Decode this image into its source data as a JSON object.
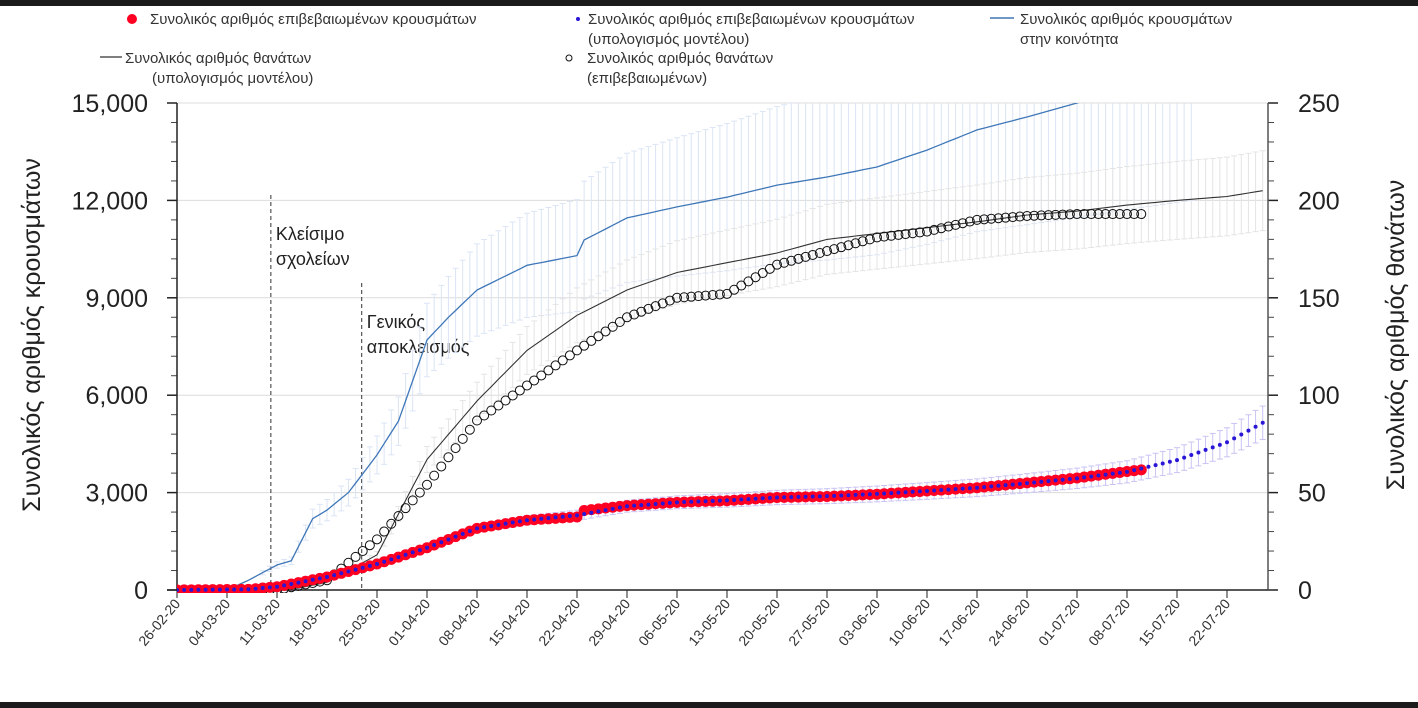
{
  "chart_data": {
    "type": "scatter",
    "title": "",
    "xlabel": "",
    "ylabel_left": "Συνολικός αριθμός κρουσμάτων",
    "ylabel_right": "Συνολικός αριθμός θανάτων",
    "ylim_left": [
      0,
      15000
    ],
    "ylim_right": [
      0,
      250
    ],
    "yticks_left": [
      "0",
      "3,000",
      "6,000",
      "9,000",
      "12,000",
      "15,000"
    ],
    "yticks_right": [
      "0",
      "50",
      "100",
      "150",
      "200",
      "250"
    ],
    "x_unit": "days since 26-02-20",
    "xticks": [
      "26-02-20",
      "04-03-20",
      "11-03-20",
      "18-03-20",
      "25-03-20",
      "01-04-20",
      "08-04-20",
      "15-04-20",
      "22-04-20",
      "29-04-20",
      "06-05-20",
      "13-05-20",
      "20-05-20",
      "27-05-20",
      "03-06-20",
      "10-06-20",
      "17-06-20",
      "24-06-20",
      "01-07-20",
      "08-07-20",
      "15-07-20",
      "22-07-20"
    ],
    "grid": "horizontal",
    "legend_placement": "top",
    "legend": [
      {
        "label": "Συνολικός αριθμός επιβεβαιωμένων κρουσμάτων",
        "color": "#ff0022",
        "marker": "filled-circle"
      },
      {
        "label": "Συνολικός αριθμός επιβεβαιωμένων κρουσμάτων",
        "label2": "(υπολογισμός μοντέλου)",
        "color": "#2a16d6",
        "marker": "dot"
      },
      {
        "label": "Συνολικός αριθμός κρουσμάτων",
        "label2": "στην κοινότητα",
        "color": "#3f77b8",
        "marker": "line"
      },
      {
        "label": "Συνολικός αριθμός θανάτων",
        "label2": "(υπολογισμός μοντέλου)",
        "color": "#333333",
        "marker": "line"
      },
      {
        "label": "Συνολικός αριθμός θανάτων",
        "label2": "(επιβεβαιωμένων)",
        "color": "#111111",
        "marker": "open-circle"
      }
    ],
    "annotations": [
      {
        "day": 13,
        "label1": "Κλείσιμο",
        "label2": "σχολείων"
      },
      {
        "day": 26,
        "label1": "Γενικός",
        "label2": "αποκλεισμός"
      }
    ],
    "series": [
      {
        "name": "confirmed_cases",
        "axis": "left",
        "start": 0,
        "end": 135,
        "knots": [
          [
            0,
            0
          ],
          [
            10,
            20
          ],
          [
            14,
            100
          ],
          [
            21,
            400
          ],
          [
            28,
            800
          ],
          [
            35,
            1300
          ],
          [
            42,
            1900
          ],
          [
            49,
            2150
          ],
          [
            56,
            2250
          ],
          [
            57,
            2450
          ],
          [
            63,
            2600
          ],
          [
            70,
            2700
          ],
          [
            77,
            2750
          ],
          [
            84,
            2850
          ],
          [
            91,
            2880
          ],
          [
            98,
            2950
          ],
          [
            105,
            3050
          ],
          [
            112,
            3150
          ],
          [
            119,
            3300
          ],
          [
            126,
            3450
          ],
          [
            133,
            3650
          ],
          [
            135,
            3700
          ]
        ]
      },
      {
        "name": "confirmed_cases_model",
        "axis": "left",
        "start": 0,
        "end": 152,
        "error_frac": [
          0.05,
          0.1
        ],
        "knots": [
          [
            0,
            0
          ],
          [
            10,
            20
          ],
          [
            14,
            100
          ],
          [
            21,
            400
          ],
          [
            28,
            800
          ],
          [
            35,
            1300
          ],
          [
            42,
            1900
          ],
          [
            49,
            2150
          ],
          [
            56,
            2300
          ],
          [
            63,
            2580
          ],
          [
            70,
            2700
          ],
          [
            77,
            2760
          ],
          [
            84,
            2850
          ],
          [
            91,
            2890
          ],
          [
            98,
            2960
          ],
          [
            105,
            3050
          ],
          [
            112,
            3150
          ],
          [
            119,
            3290
          ],
          [
            126,
            3440
          ],
          [
            133,
            3640
          ],
          [
            140,
            4000
          ],
          [
            147,
            4550
          ],
          [
            152,
            5150
          ]
        ]
      },
      {
        "name": "community_cases",
        "axis": "left",
        "start": 7,
        "end": 142,
        "error_frac": [
          0.12,
          0.25
        ],
        "knots": [
          [
            7,
            0
          ],
          [
            10,
            300
          ],
          [
            14,
            770
          ],
          [
            16,
            900
          ],
          [
            19,
            2200
          ],
          [
            21,
            2460
          ],
          [
            24,
            3000
          ],
          [
            28,
            4160
          ],
          [
            31,
            5200
          ],
          [
            35,
            7700
          ],
          [
            38,
            8400
          ],
          [
            42,
            9240
          ],
          [
            49,
            10000
          ],
          [
            56,
            10300
          ],
          [
            57,
            10780
          ],
          [
            63,
            11460
          ],
          [
            70,
            11800
          ],
          [
            77,
            12100
          ],
          [
            84,
            12470
          ],
          [
            91,
            12720
          ],
          [
            98,
            13030
          ],
          [
            105,
            13550
          ],
          [
            112,
            14170
          ],
          [
            119,
            14570
          ],
          [
            126,
            15000
          ],
          [
            142,
            16000
          ]
        ]
      },
      {
        "name": "deaths_model",
        "axis": "right",
        "start": 10,
        "end": 152,
        "error_frac": [
          0.1,
          0.1
        ],
        "knots": [
          [
            10,
            0
          ],
          [
            17,
            1
          ],
          [
            21,
            4
          ],
          [
            28,
            18
          ],
          [
            35,
            67
          ],
          [
            42,
            97
          ],
          [
            49,
            123
          ],
          [
            56,
            141
          ],
          [
            63,
            154
          ],
          [
            70,
            163
          ],
          [
            77,
            168
          ],
          [
            84,
            173
          ],
          [
            91,
            180
          ],
          [
            98,
            183
          ],
          [
            105,
            186
          ],
          [
            112,
            189
          ],
          [
            119,
            192.5
          ],
          [
            126,
            194.5
          ],
          [
            133,
            197.6
          ],
          [
            140,
            200
          ],
          [
            147,
            202
          ],
          [
            152,
            205
          ]
        ]
      },
      {
        "name": "deaths_confirmed",
        "axis": "right",
        "start": 0,
        "end": 135,
        "knots": [
          [
            0,
            0
          ],
          [
            14,
            0
          ],
          [
            21,
            5
          ],
          [
            28,
            26
          ],
          [
            35,
            54
          ],
          [
            42,
            87
          ],
          [
            49,
            105
          ],
          [
            56,
            123
          ],
          [
            63,
            140
          ],
          [
            70,
            150
          ],
          [
            77,
            152
          ],
          [
            84,
            167
          ],
          [
            91,
            174
          ],
          [
            98,
            181
          ],
          [
            105,
            184
          ],
          [
            112,
            190
          ],
          [
            119,
            192
          ],
          [
            126,
            193
          ],
          [
            135,
            193
          ]
        ]
      }
    ]
  }
}
